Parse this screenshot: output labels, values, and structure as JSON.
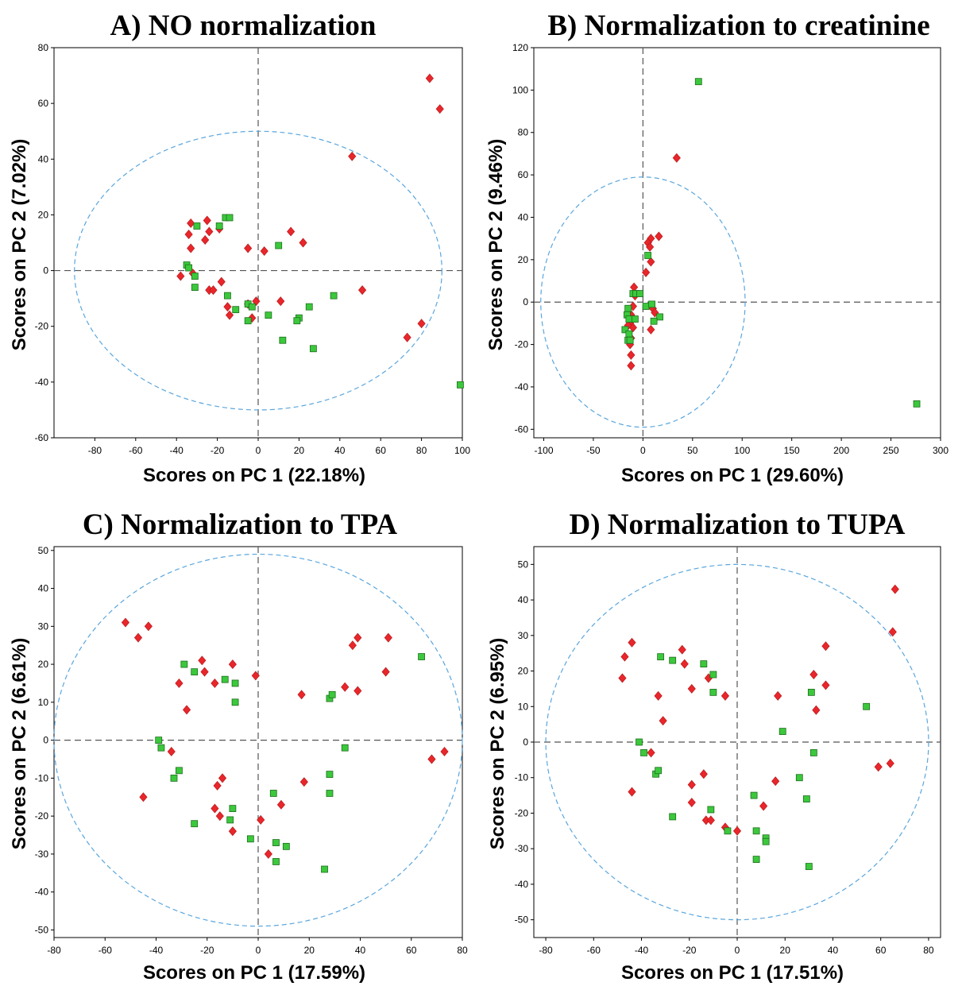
{
  "colors": {
    "group_1": "#e8262b",
    "group_2": "#3cc83c",
    "ellipse": "#5aa6dd"
  },
  "chart_data": [
    {
      "type": "scatter",
      "title": "A) NO normalization",
      "xlabel": "Scores on PC 1 (22.18%)",
      "ylabel": "Scores on PC 2 (7.02%)",
      "xlim": [
        -100,
        100
      ],
      "ylim": [
        -60,
        80
      ],
      "xticks": [
        -80,
        -60,
        -40,
        -20,
        0,
        20,
        40,
        60,
        80,
        100
      ],
      "yticks": [
        -60,
        -40,
        -20,
        0,
        20,
        40,
        60,
        80
      ],
      "confidence_ellipse": {
        "center": [
          0,
          0
        ],
        "radius_x": 90,
        "radius_y": 50
      },
      "series": [
        {
          "marker": "diamond",
          "color": "#e8262b",
          "points": [
            [
              84,
              69
            ],
            [
              89,
              58
            ],
            [
              46,
              41
            ],
            [
              -34,
              13
            ],
            [
              -33,
              17
            ],
            [
              -26,
              11
            ],
            [
              -25,
              18
            ],
            [
              -24,
              14
            ],
            [
              -19,
              15
            ],
            [
              -33,
              8
            ],
            [
              -38,
              -2
            ],
            [
              -32,
              -1
            ],
            [
              -24,
              -7
            ],
            [
              -22,
              -7
            ],
            [
              -18,
              -4
            ],
            [
              -15,
              -13
            ],
            [
              -14,
              -16
            ],
            [
              -5,
              8
            ],
            [
              3,
              7
            ],
            [
              16,
              14
            ],
            [
              22,
              10
            ],
            [
              -5,
              -12
            ],
            [
              -1,
              -11
            ],
            [
              11,
              -11
            ],
            [
              -3,
              -17
            ],
            [
              51,
              -7
            ],
            [
              73,
              -24
            ],
            [
              80,
              -19
            ]
          ]
        },
        {
          "marker": "square",
          "color": "#3cc83c",
          "points": [
            [
              -30,
              16
            ],
            [
              -16,
              19
            ],
            [
              -14,
              19
            ],
            [
              -19,
              16
            ],
            [
              -35,
              2
            ],
            [
              -34,
              1
            ],
            [
              -31,
              -2
            ],
            [
              -31,
              -6
            ],
            [
              -15,
              -9
            ],
            [
              -11,
              -14
            ],
            [
              -5,
              -12
            ],
            [
              -3,
              -13
            ],
            [
              -5,
              -18
            ],
            [
              5,
              -16
            ],
            [
              10,
              9
            ],
            [
              12,
              -25
            ],
            [
              25,
              -13
            ],
            [
              20,
              -17
            ],
            [
              19,
              -18
            ],
            [
              27,
              -28
            ],
            [
              37,
              -9
            ],
            [
              99,
              -41
            ]
          ]
        }
      ]
    },
    {
      "type": "scatter",
      "title": "B) Normalization to creatinine",
      "xlabel": "Scores on PC 1 (29.60%)",
      "ylabel": "Scores on PC 2 (9.46%)",
      "xlim": [
        -110,
        300
      ],
      "ylim": [
        -64,
        120
      ],
      "xticks": [
        -100,
        -50,
        0,
        50,
        100,
        150,
        200,
        250,
        300
      ],
      "yticks": [
        -60,
        -40,
        -20,
        0,
        20,
        40,
        60,
        80,
        100,
        120
      ],
      "confidence_ellipse": {
        "center": [
          0,
          0
        ],
        "radius_x": 103,
        "radius_y": 59
      },
      "series": [
        {
          "marker": "diamond",
          "color": "#e8262b",
          "points": [
            [
              34,
              68
            ],
            [
              16,
              31
            ],
            [
              8,
              30
            ],
            [
              5,
              28
            ],
            [
              7,
              26
            ],
            [
              3,
              14
            ],
            [
              8,
              19
            ],
            [
              -9,
              7
            ],
            [
              -8,
              3
            ],
            [
              -10,
              -2
            ],
            [
              -12,
              -6
            ],
            [
              -13,
              -10
            ],
            [
              -10,
              -12
            ],
            [
              -12,
              -17
            ],
            [
              -13,
              -20
            ],
            [
              -12,
              -25
            ],
            [
              -12,
              -30
            ],
            [
              10,
              -3
            ],
            [
              12,
              -5
            ],
            [
              8,
              -13
            ],
            [
              -15,
              -11
            ]
          ]
        },
        {
          "marker": "square",
          "color": "#3cc83c",
          "points": [
            [
              56,
              104
            ],
            [
              5,
              22
            ],
            [
              -10,
              4
            ],
            [
              -7,
              4
            ],
            [
              -3,
              4
            ],
            [
              -15,
              -3
            ],
            [
              -16,
              -6
            ],
            [
              -14,
              -8
            ],
            [
              -18,
              -13
            ],
            [
              -14,
              -15
            ],
            [
              -15,
              -18
            ],
            [
              -13,
              -18
            ],
            [
              -8,
              -8
            ],
            [
              3,
              -2
            ],
            [
              9,
              -1
            ],
            [
              17,
              -7
            ],
            [
              11,
              -9
            ],
            [
              276,
              -48
            ]
          ]
        }
      ]
    },
    {
      "type": "scatter",
      "title": "C) Normalization to TPA",
      "xlabel": "Scores on PC 1 (17.59%)",
      "ylabel": "Scores on PC 2 (6.61%)",
      "xlim": [
        -80,
        80
      ],
      "ylim": [
        -52,
        51
      ],
      "xticks": [
        -80,
        -60,
        -40,
        -20,
        0,
        20,
        40,
        60,
        80
      ],
      "yticks": [
        -50,
        -40,
        -30,
        -20,
        -10,
        0,
        10,
        20,
        30,
        40,
        50
      ],
      "confidence_ellipse": {
        "center": [
          0,
          0
        ],
        "radius_x": 80,
        "radius_y": 49
      },
      "series": [
        {
          "marker": "diamond",
          "color": "#e8262b",
          "points": [
            [
              -52,
              31
            ],
            [
              -47,
              27
            ],
            [
              -43,
              30
            ],
            [
              -22,
              21
            ],
            [
              -21,
              18
            ],
            [
              -17,
              15
            ],
            [
              -10,
              20
            ],
            [
              -1,
              17
            ],
            [
              -31,
              15
            ],
            [
              -28,
              8
            ],
            [
              -34,
              -3
            ],
            [
              -45,
              -15
            ],
            [
              -16,
              -12
            ],
            [
              -14,
              -10
            ],
            [
              -17,
              -18
            ],
            [
              -15,
              -20
            ],
            [
              -10,
              -24
            ],
            [
              1,
              -21
            ],
            [
              4,
              -30
            ],
            [
              9,
              -17
            ],
            [
              17,
              12
            ],
            [
              18,
              -11
            ],
            [
              34,
              14
            ],
            [
              37,
              25
            ],
            [
              39,
              27
            ],
            [
              39,
              13
            ],
            [
              51,
              27
            ],
            [
              50,
              18
            ],
            [
              68,
              -5
            ],
            [
              73,
              -3
            ]
          ]
        },
        {
          "marker": "square",
          "color": "#3cc83c",
          "points": [
            [
              -29,
              20
            ],
            [
              -25,
              18
            ],
            [
              -13,
              16
            ],
            [
              -9,
              15
            ],
            [
              -9,
              10
            ],
            [
              -39,
              0
            ],
            [
              -38,
              -2
            ],
            [
              -31,
              -8
            ],
            [
              -33,
              -10
            ],
            [
              -25,
              -22
            ],
            [
              -11,
              -21
            ],
            [
              -10,
              -18
            ],
            [
              -3,
              -26
            ],
            [
              6,
              -14
            ],
            [
              7,
              -27
            ],
            [
              7,
              -32
            ],
            [
              11,
              -28
            ],
            [
              26,
              -34
            ],
            [
              28,
              -9
            ],
            [
              28,
              -14
            ],
            [
              28,
              11
            ],
            [
              29,
              12
            ],
            [
              34,
              -2
            ],
            [
              64,
              22
            ]
          ]
        }
      ]
    },
    {
      "type": "scatter",
      "title": "D) Normalization to TUPA",
      "xlabel": "Scores on PC 1 (17.51%)",
      "ylabel": "Scores on PC 2 (6.95%)",
      "xlim": [
        -85,
        85
      ],
      "ylim": [
        -55,
        55
      ],
      "xticks": [
        -80,
        -60,
        -40,
        -20,
        0,
        20,
        40,
        60,
        80
      ],
      "yticks": [
        -50,
        -40,
        -30,
        -20,
        -10,
        0,
        10,
        20,
        30,
        40,
        50
      ],
      "confidence_ellipse": {
        "center": [
          0,
          0
        ],
        "radius_x": 80,
        "radius_y": 50
      },
      "series": [
        {
          "marker": "diamond",
          "color": "#e8262b",
          "points": [
            [
              -47,
              24
            ],
            [
              -48,
              18
            ],
            [
              -44,
              28
            ],
            [
              -33,
              13
            ],
            [
              -31,
              6
            ],
            [
              -23,
              26
            ],
            [
              -22,
              22
            ],
            [
              -19,
              15
            ],
            [
              -12,
              18
            ],
            [
              -5,
              13
            ],
            [
              -36,
              -3
            ],
            [
              -44,
              -14
            ],
            [
              -19,
              -12
            ],
            [
              -19,
              -17
            ],
            [
              -14,
              -9
            ],
            [
              -13,
              -22
            ],
            [
              -11,
              -22
            ],
            [
              -5,
              -24
            ],
            [
              0,
              -25
            ],
            [
              11,
              -18
            ],
            [
              16,
              -11
            ],
            [
              17,
              13
            ],
            [
              32,
              19
            ],
            [
              33,
              9
            ],
            [
              37,
              27
            ],
            [
              37,
              16
            ],
            [
              59,
              -7
            ],
            [
              64,
              -6
            ],
            [
              65,
              31
            ],
            [
              66,
              43
            ]
          ]
        },
        {
          "marker": "square",
          "color": "#3cc83c",
          "points": [
            [
              -32,
              24
            ],
            [
              -27,
              23
            ],
            [
              -14,
              22
            ],
            [
              -10,
              19
            ],
            [
              -10,
              14
            ],
            [
              -41,
              0
            ],
            [
              -39,
              -3
            ],
            [
              -34,
              -9
            ],
            [
              -33,
              -8
            ],
            [
              -27,
              -21
            ],
            [
              -11,
              -19
            ],
            [
              -4,
              -25
            ],
            [
              7,
              -15
            ],
            [
              8,
              -25
            ],
            [
              8,
              -33
            ],
            [
              12,
              -27
            ],
            [
              12,
              -28
            ],
            [
              19,
              3
            ],
            [
              26,
              -10
            ],
            [
              29,
              -16
            ],
            [
              30,
              -35
            ],
            [
              31,
              14
            ],
            [
              32,
              -3
            ],
            [
              54,
              10
            ]
          ]
        }
      ]
    }
  ]
}
